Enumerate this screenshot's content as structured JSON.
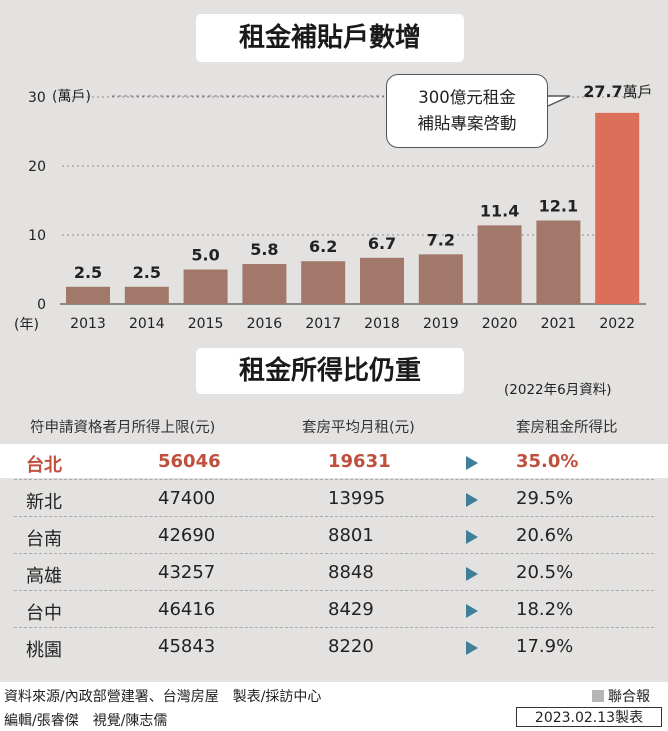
{
  "chart_data": {
    "type": "bar",
    "title": "租金補貼戶數增",
    "categories": [
      "2013",
      "2014",
      "2015",
      "2016",
      "2017",
      "2018",
      "2019",
      "2020",
      "2021",
      "2022"
    ],
    "values": [
      2.5,
      2.5,
      5.0,
      5.8,
      6.2,
      6.7,
      7.2,
      11.4,
      12.1,
      27.7
    ],
    "value_labels": [
      "2.5",
      "2.5",
      "5.0",
      "5.8",
      "6.2",
      "6.7",
      "7.2",
      "11.4",
      "12.1",
      "27.7"
    ],
    "last_value_unit": "萬戶",
    "ylim": [
      0,
      30
    ],
    "yticks": [
      0,
      10,
      20,
      30
    ],
    "ylabel": "(萬戶)",
    "xlabel": "(年)",
    "grid": true,
    "bar_color": "#a2786a",
    "highlight_color": "#dc6f59",
    "annotation_line1": "300億元租金",
    "annotation_line2": "補貼專案啓動"
  },
  "table": {
    "title": "租金所得比仍重",
    "note": "(2022年6月資料)",
    "headers": [
      "符申請資格者月所得上限(元)",
      "套房平均月租(元)",
      "套房租金所得比"
    ],
    "rows": [
      {
        "city": "台北",
        "income": "56046",
        "rent": "19631",
        "ratio": "35.0%"
      },
      {
        "city": "新北",
        "income": "47400",
        "rent": "13995",
        "ratio": "29.5%"
      },
      {
        "city": "台南",
        "income": "42690",
        "rent": "8801",
        "ratio": "20.6%"
      },
      {
        "city": "高雄",
        "income": "43257",
        "rent": "8848",
        "ratio": "20.5%"
      },
      {
        "city": "台中",
        "income": "46416",
        "rent": "8429",
        "ratio": "18.2%"
      },
      {
        "city": "桃園",
        "income": "45843",
        "rent": "8220",
        "ratio": "17.9%"
      }
    ]
  },
  "footer": {
    "source": "資料來源/內政部營建署、台灣房屋　製表/採訪中心",
    "credits": "編輯/張睿傑　視覺/陳志儒",
    "brand": "聯合報",
    "date": "2023.02.13製表"
  },
  "colors": {
    "panel": "#e4e2e0",
    "accent": "#c0503d",
    "arrow": "#3f7f98"
  }
}
